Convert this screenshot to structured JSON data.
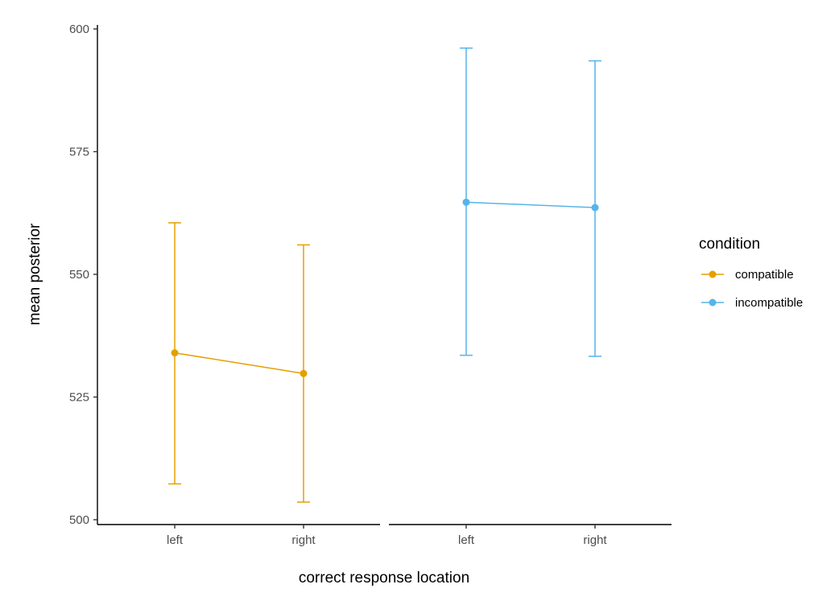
{
  "chart_data": {
    "type": "line",
    "xlabel": "correct response location",
    "ylabel": "mean posterior",
    "ylim": [
      500,
      600
    ],
    "yticks": [
      500,
      525,
      550,
      575,
      600
    ],
    "grid": false,
    "legend": {
      "title": "condition",
      "placement": "right"
    },
    "facets": [
      {
        "categories": [
          "left",
          "right"
        ],
        "series": [
          {
            "name": "compatible",
            "color": "#E69F00",
            "values": [
              534,
              529.8
            ],
            "lower": [
              507.3,
              503.6
            ],
            "upper": [
              560.5,
              556
            ]
          }
        ]
      },
      {
        "categories": [
          "left",
          "right"
        ],
        "series": [
          {
            "name": "incompatible",
            "color": "#56B4E9",
            "values": [
              564.7,
              563.6
            ],
            "lower": [
              533.5,
              533.3
            ],
            "upper": [
              596.1,
              593.5
            ]
          }
        ]
      }
    ],
    "legend_entries": [
      {
        "name": "compatible",
        "color": "#E69F00"
      },
      {
        "name": "incompatible",
        "color": "#56B4E9"
      }
    ]
  }
}
